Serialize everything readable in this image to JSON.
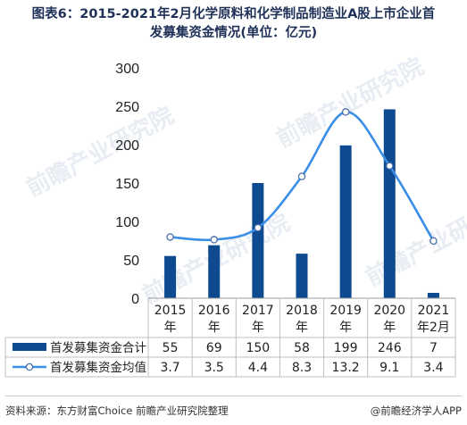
{
  "title_line1": "图表6：2015-2021年2月化学原料和化学制品制造业A股上市企业首",
  "title_line2": "发募集资金情况(单位：亿元)",
  "watermark": "前瞻产业研究院",
  "footer": {
    "source": "资料来源：东方财富Choice 前瞻产业研究院整理",
    "brand": "@前瞻经济学人APP"
  },
  "chart_data": {
    "type": "bar+line",
    "categories": [
      [
        "2015",
        "年"
      ],
      [
        "2016",
        "年"
      ],
      [
        "2017",
        "年"
      ],
      [
        "2018",
        "年"
      ],
      [
        "2019",
        "年"
      ],
      [
        "2020",
        "年"
      ],
      [
        "2021",
        "年2月"
      ]
    ],
    "yticks": [
      0,
      50,
      100,
      150,
      200,
      250,
      300
    ],
    "ylim": [
      0,
      300
    ],
    "series": [
      {
        "name": "首发募集资金合计",
        "type": "bar",
        "color": "#0e4a8f",
        "values": [
          55,
          69,
          150,
          58,
          199,
          246,
          7
        ]
      },
      {
        "name": "首发募集资金均值",
        "type": "line",
        "color": "#3a8ee6",
        "values": [
          3.7,
          3.5,
          4.4,
          8.3,
          13.2,
          9.1,
          3.4
        ],
        "labels": [
          "3.7",
          "3.5",
          "4.4",
          "8.3",
          "13.2",
          "9.1",
          "3.4"
        ]
      }
    ],
    "line_scale_max": 14
  }
}
